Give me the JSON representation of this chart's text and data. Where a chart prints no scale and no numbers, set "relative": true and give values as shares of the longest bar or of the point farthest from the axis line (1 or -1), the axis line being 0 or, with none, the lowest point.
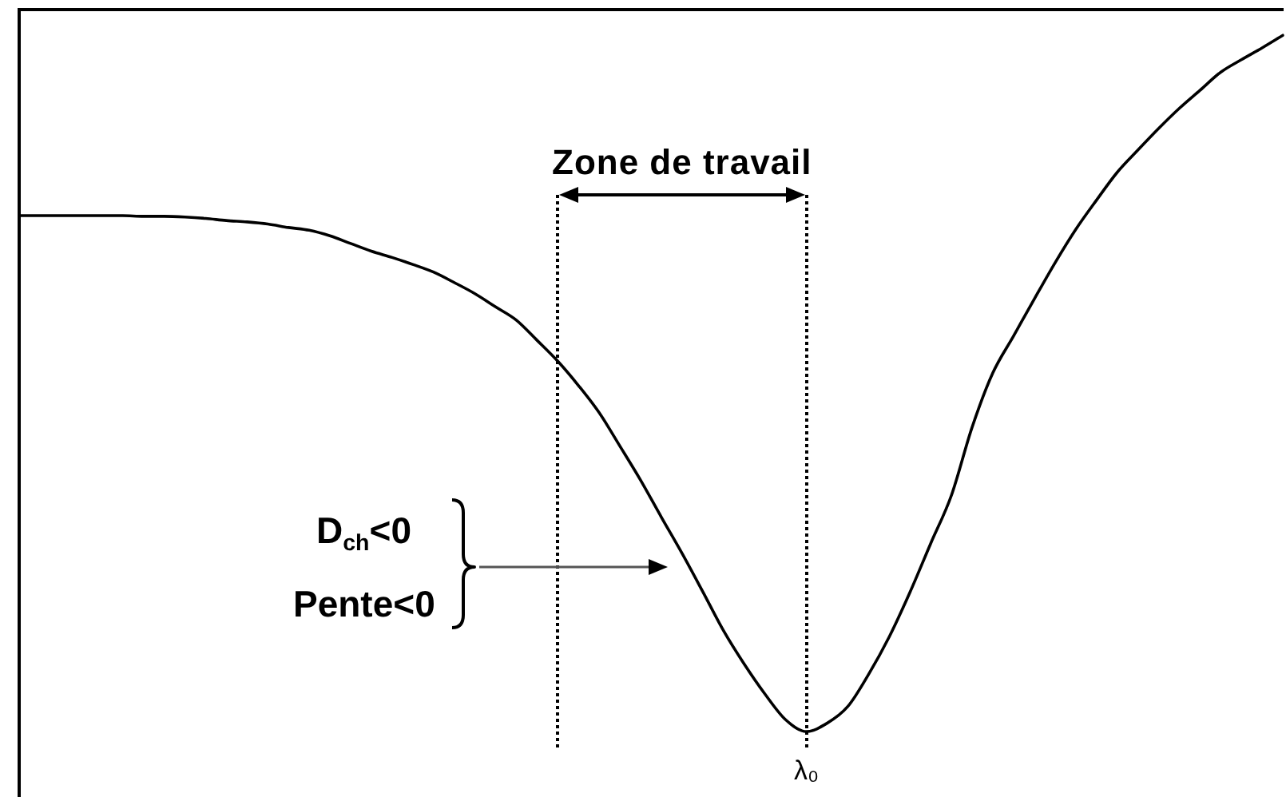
{
  "chart_data": {
    "type": "line",
    "categories": [
      null,
      null,
      null,
      null,
      null,
      null,
      null,
      null,
      null,
      null,
      null,
      null,
      null,
      null,
      null,
      null,
      null,
      null,
      null,
      null,
      null,
      null,
      null,
      null,
      null,
      null,
      null,
      null,
      null,
      null,
      null,
      null,
      null,
      null,
      null,
      null,
      null,
      null,
      null,
      null,
      null,
      null,
      null,
      null,
      null,
      null,
      null,
      null,
      null,
      null,
      null,
      null,
      null,
      null,
      null,
      null,
      null,
      null,
      null,
      null,
      null,
      null
    ],
    "values": [
      0.741,
      0.741,
      0.741,
      0.741,
      0.741,
      0.741,
      0.74,
      0.74,
      0.739,
      0.737,
      0.734,
      0.732,
      0.729,
      0.724,
      0.72,
      0.712,
      0.701,
      0.69,
      0.681,
      0.671,
      0.66,
      0.645,
      0.629,
      0.61,
      0.591,
      0.562,
      0.532,
      0.497,
      0.458,
      0.41,
      0.361,
      0.308,
      0.256,
      0.201,
      0.145,
      0.097,
      0.054,
      0.017,
      0,
      0.012,
      0.036,
      0.082,
      0.136,
      0.2,
      0.27,
      0.339,
      0.437,
      0.515,
      0.568,
      0.621,
      0.673,
      0.721,
      0.763,
      0.803,
      0.835,
      0.866,
      0.895,
      0.921,
      0.947,
      0.965,
      0.982,
      1
    ],
    "color": "#000000",
    "relative": true,
    "marker": "none",
    "line_style": "solid",
    "tick_labels": false,
    "annotations": [
      "Zone de travail",
      "D$_{ch}$<0",
      "Pente<0",
      "λ₀"
    ]
  }
}
